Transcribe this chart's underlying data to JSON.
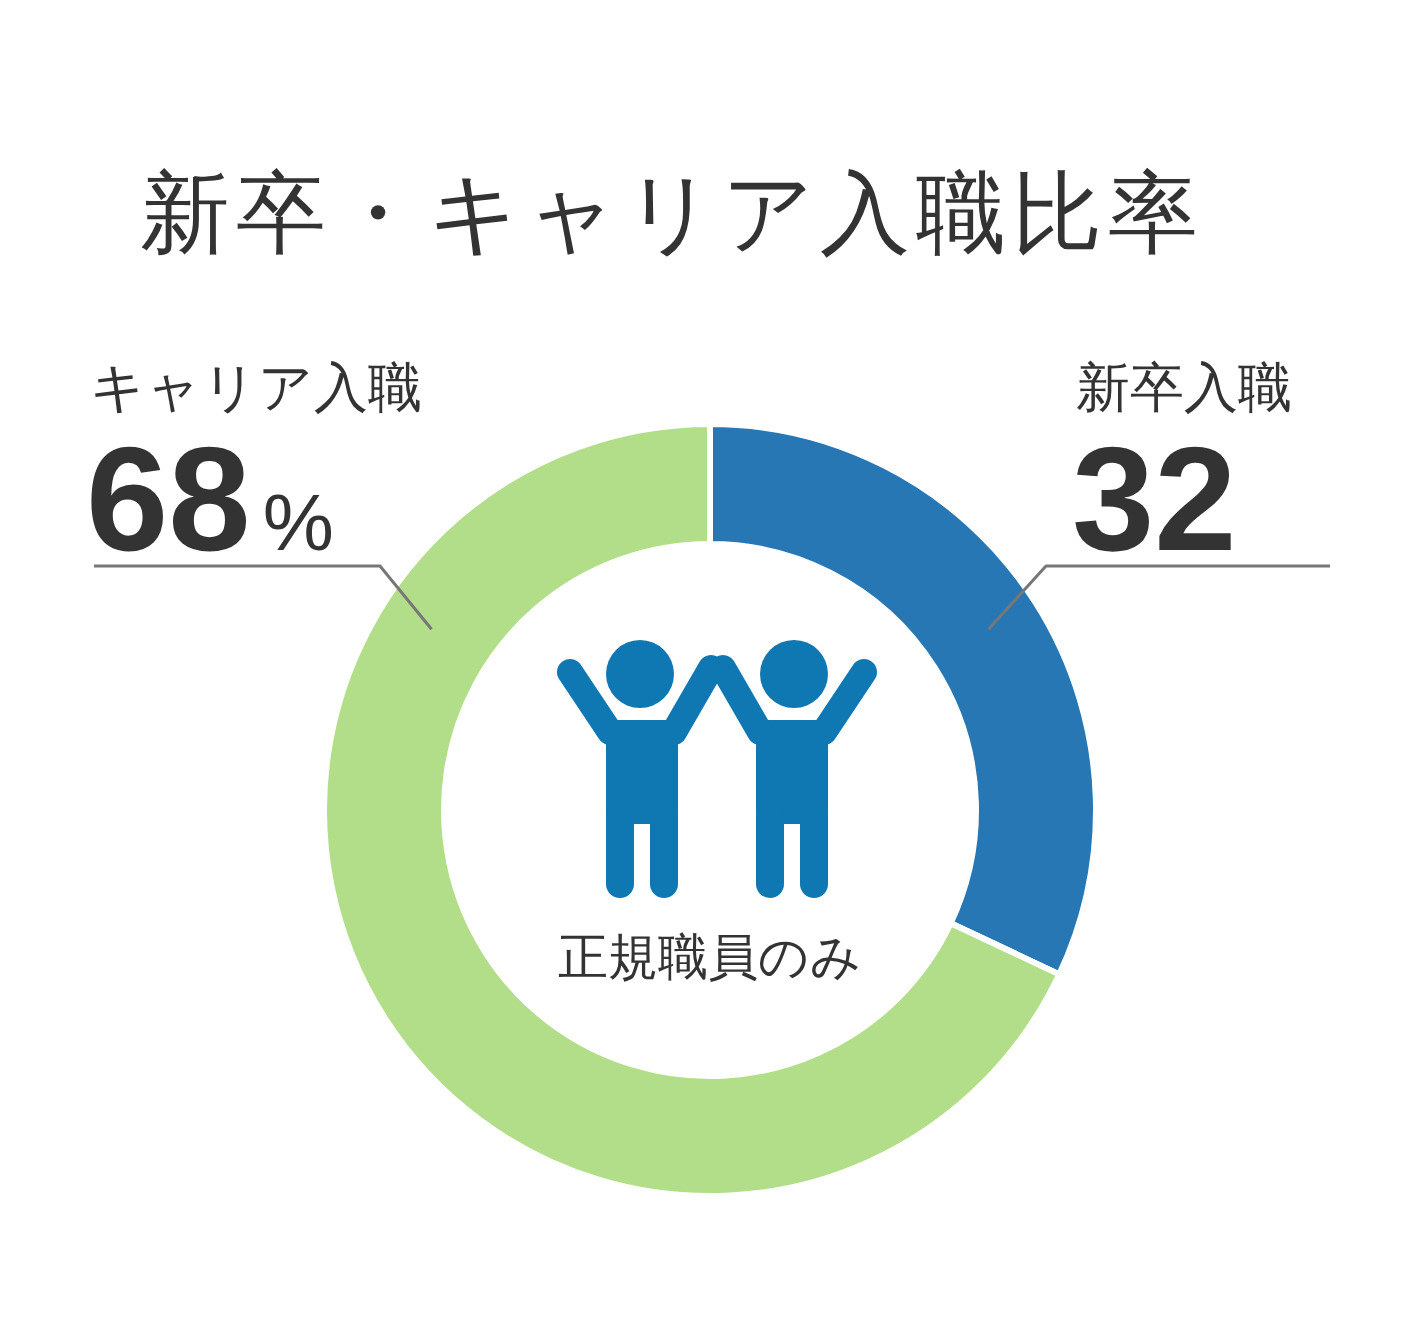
{
  "chart_data": {
    "type": "donut",
    "title": "新卒・キャリア入職比率",
    "categories": [
      "新卒入職",
      "キャリア入職"
    ],
    "values": [
      32,
      68
    ],
    "colors": [
      "#2677b4",
      "#b2de8a"
    ],
    "value_labels": [
      "32",
      "68%"
    ],
    "annotations": [
      "正規職員のみ"
    ]
  }
}
